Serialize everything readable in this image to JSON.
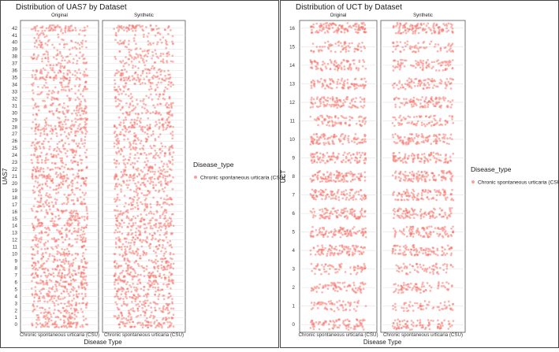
{
  "chart_data": [
    {
      "type": "scatter",
      "title": "Distribution of UAS7 by Dataset",
      "facets": [
        "Original",
        "Synthetic"
      ],
      "categories": [
        "Chronic spontaneous urticaria (CSU)"
      ],
      "xlabel": "Disease Type",
      "ylabel": "UAS7",
      "ylim": [
        0,
        42
      ],
      "yticks": [
        0,
        1,
        2,
        3,
        4,
        5,
        6,
        7,
        8,
        9,
        10,
        11,
        12,
        13,
        14,
        15,
        16,
        17,
        18,
        19,
        20,
        21,
        22,
        23,
        24,
        25,
        26,
        27,
        28,
        29,
        30,
        31,
        32,
        33,
        34,
        35,
        36,
        37,
        38,
        39,
        40,
        41,
        42
      ],
      "legend_title": "Disease_type",
      "legend_items": [
        "Chronic spontaneous urticaria (CSU)"
      ],
      "legend_position": "right",
      "point_color": "#F8766D",
      "jitter": true,
      "grid": true,
      "series": [
        {
          "facet": "Original",
          "y": [
            0,
            1,
            2,
            3,
            4,
            5,
            6,
            7,
            8,
            9,
            10,
            11,
            12,
            13,
            14,
            15,
            16,
            17,
            18,
            19,
            20,
            21,
            22,
            23,
            24,
            25,
            26,
            27,
            28,
            29,
            30,
            31,
            32,
            33,
            34,
            35,
            36,
            37,
            38,
            39,
            40,
            41,
            42
          ],
          "relative_density": [
            1.0,
            0.6,
            0.6,
            0.5,
            0.7,
            0.6,
            0.8,
            0.9,
            0.8,
            0.6,
            0.5,
            0.45,
            0.6,
            0.5,
            0.8,
            0.6,
            0.5,
            0.5,
            0.4,
            0.35,
            0.6,
            0.9,
            0.6,
            0.4,
            0.5,
            0.5,
            0.4,
            0.4,
            0.9,
            0.4,
            0.5,
            0.45,
            0.3,
            0.35,
            0.4,
            0.8,
            0.5,
            0.3,
            0.5,
            0.2,
            0.4,
            0.15,
            0.9
          ]
        },
        {
          "facet": "Synthetic",
          "y": [
            0,
            1,
            2,
            3,
            4,
            5,
            6,
            7,
            8,
            9,
            10,
            11,
            12,
            13,
            14,
            15,
            16,
            17,
            18,
            19,
            20,
            21,
            22,
            23,
            24,
            25,
            26,
            27,
            28,
            29,
            30,
            31,
            32,
            33,
            34,
            35,
            36,
            37,
            38,
            39,
            40,
            41,
            42
          ],
          "relative_density": [
            1.0,
            0.6,
            0.6,
            0.5,
            0.7,
            0.6,
            0.8,
            0.9,
            0.8,
            0.6,
            0.5,
            0.45,
            0.6,
            0.5,
            0.8,
            0.6,
            0.5,
            0.5,
            0.4,
            0.35,
            0.6,
            0.9,
            0.6,
            0.4,
            0.5,
            0.5,
            0.4,
            0.4,
            0.9,
            0.4,
            0.5,
            0.45,
            0.3,
            0.35,
            0.4,
            0.8,
            0.5,
            0.3,
            0.5,
            0.2,
            0.4,
            0.15,
            0.9
          ]
        }
      ]
    },
    {
      "type": "scatter",
      "title": "Distribution of UCT by Dataset",
      "facets": [
        "Original",
        "Synthetic"
      ],
      "categories": [
        "Chronic spontaneous urticaria (CSU)"
      ],
      "xlabel": "Disease Type",
      "ylabel": "UCT",
      "ylim": [
        0,
        16
      ],
      "yticks": [
        0,
        1,
        2,
        3,
        4,
        5,
        6,
        7,
        8,
        9,
        10,
        11,
        12,
        13,
        14,
        15,
        16
      ],
      "legend_title": "Disease_type",
      "legend_items": [
        "Chronic spontaneous urticaria (CSU)"
      ],
      "legend_position": "right",
      "point_color": "#F8766D",
      "jitter": true,
      "grid": true,
      "series": [
        {
          "facet": "Original",
          "y": [
            0,
            1,
            2,
            3,
            4,
            5,
            6,
            7,
            8,
            9,
            10,
            11,
            12,
            13,
            14,
            15,
            16
          ],
          "relative_density": [
            0.7,
            0.45,
            0.6,
            0.5,
            0.8,
            0.8,
            0.8,
            0.8,
            0.9,
            0.8,
            0.8,
            0.6,
            0.8,
            0.7,
            0.7,
            0.5,
            1.0
          ]
        },
        {
          "facet": "Synthetic",
          "y": [
            0,
            1,
            2,
            3,
            4,
            5,
            6,
            7,
            8,
            9,
            10,
            11,
            12,
            13,
            14,
            15,
            16
          ],
          "relative_density": [
            0.7,
            0.45,
            0.6,
            0.5,
            0.8,
            0.8,
            0.8,
            0.8,
            0.9,
            0.8,
            0.8,
            0.6,
            0.8,
            0.7,
            0.7,
            0.5,
            1.0
          ]
        }
      ]
    }
  ]
}
